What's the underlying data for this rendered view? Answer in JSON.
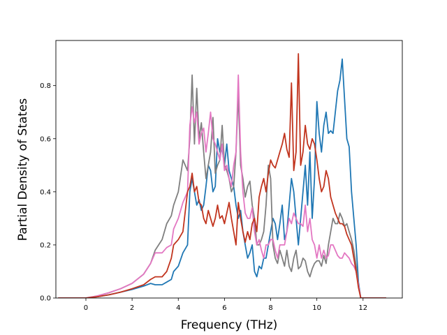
{
  "chart_data": {
    "type": "line",
    "xlabel": "Frequency (THz)",
    "ylabel": "Partial Density of States",
    "xlim": [
      -1.3,
      13.7
    ],
    "ylim": [
      0,
      0.97
    ],
    "xticks": [
      "0",
      "2",
      "4",
      "6",
      "8",
      "10",
      "12"
    ],
    "yticks": [
      "0.0",
      "0.2",
      "0.4",
      "0.6",
      "0.8"
    ],
    "grid": false,
    "legend": "none",
    "series": [
      {
        "color": "#1f77b4",
        "x": [
          -1.2,
          0.0,
          0.5,
          1.0,
          1.5,
          2.0,
          2.5,
          2.8,
          3.0,
          3.3,
          3.5,
          3.7,
          3.8,
          4.0,
          4.2,
          4.4,
          4.5,
          4.6,
          4.7,
          4.8,
          4.9,
          5.0,
          5.1,
          5.2,
          5.3,
          5.4,
          5.5,
          5.6,
          5.7,
          5.8,
          5.9,
          6.0,
          6.1,
          6.2,
          6.3,
          6.4,
          6.5,
          6.6,
          6.7,
          6.8,
          6.9,
          7.0,
          7.1,
          7.2,
          7.3,
          7.4,
          7.5,
          7.6,
          7.7,
          7.8,
          7.9,
          8.0,
          8.1,
          8.2,
          8.3,
          8.4,
          8.5,
          8.6,
          8.7,
          8.8,
          8.9,
          9.0,
          9.1,
          9.2,
          9.3,
          9.4,
          9.5,
          9.6,
          9.7,
          9.8,
          9.9,
          10.0,
          10.1,
          10.2,
          10.3,
          10.4,
          10.5,
          10.6,
          10.7,
          10.8,
          10.9,
          11.0,
          11.1,
          11.2,
          11.3,
          11.4,
          11.5,
          11.6,
          11.7,
          11.8,
          11.9,
          13.0
        ],
        "y": [
          0.0,
          0.0,
          0.005,
          0.012,
          0.022,
          0.032,
          0.045,
          0.055,
          0.05,
          0.05,
          0.06,
          0.07,
          0.1,
          0.12,
          0.17,
          0.2,
          0.4,
          0.45,
          0.4,
          0.35,
          0.37,
          0.33,
          0.35,
          0.42,
          0.5,
          0.48,
          0.4,
          0.42,
          0.6,
          0.55,
          0.56,
          0.5,
          0.58,
          0.48,
          0.45,
          0.42,
          0.35,
          0.3,
          0.33,
          0.25,
          0.2,
          0.15,
          0.17,
          0.2,
          0.1,
          0.08,
          0.12,
          0.11,
          0.15,
          0.15,
          0.2,
          0.25,
          0.3,
          0.28,
          0.22,
          0.28,
          0.35,
          0.22,
          0.25,
          0.35,
          0.45,
          0.4,
          0.3,
          0.2,
          0.3,
          0.4,
          0.5,
          0.35,
          0.55,
          0.3,
          0.45,
          0.74,
          0.62,
          0.55,
          0.65,
          0.7,
          0.62,
          0.63,
          0.62,
          0.7,
          0.78,
          0.82,
          0.9,
          0.75,
          0.6,
          0.57,
          0.4,
          0.3,
          0.2,
          0.06,
          0.0,
          0.0
        ]
      },
      {
        "color": "#7f7f7f",
        "x": [
          -1.2,
          0.0,
          0.5,
          1.0,
          1.5,
          2.0,
          2.5,
          2.8,
          3.0,
          3.3,
          3.5,
          3.7,
          3.8,
          4.0,
          4.2,
          4.4,
          4.5,
          4.6,
          4.7,
          4.8,
          4.9,
          5.0,
          5.1,
          5.2,
          5.3,
          5.4,
          5.5,
          5.6,
          5.7,
          5.8,
          5.9,
          6.0,
          6.1,
          6.2,
          6.3,
          6.4,
          6.5,
          6.6,
          6.7,
          6.8,
          6.9,
          7.0,
          7.1,
          7.2,
          7.3,
          7.4,
          7.5,
          7.6,
          7.7,
          7.8,
          7.9,
          8.0,
          8.1,
          8.2,
          8.3,
          8.4,
          8.5,
          8.6,
          8.7,
          8.8,
          8.9,
          9.0,
          9.1,
          9.2,
          9.3,
          9.4,
          9.5,
          9.6,
          9.7,
          9.8,
          9.9,
          10.0,
          10.1,
          10.2,
          10.3,
          10.4,
          10.5,
          10.6,
          10.7,
          10.8,
          10.9,
          11.0,
          11.1,
          11.2,
          11.3,
          11.4,
          11.5,
          11.6,
          11.7,
          11.8,
          11.9,
          13.0
        ],
        "y": [
          0.0,
          0.0,
          0.008,
          0.02,
          0.035,
          0.055,
          0.09,
          0.13,
          0.18,
          0.22,
          0.28,
          0.31,
          0.35,
          0.4,
          0.52,
          0.48,
          0.6,
          0.84,
          0.58,
          0.79,
          0.6,
          0.66,
          0.55,
          0.45,
          0.5,
          0.55,
          0.68,
          0.47,
          0.5,
          0.52,
          0.65,
          0.5,
          0.48,
          0.45,
          0.4,
          0.42,
          0.55,
          0.77,
          0.5,
          0.45,
          0.38,
          0.42,
          0.44,
          0.35,
          0.3,
          0.2,
          0.2,
          0.22,
          0.25,
          0.35,
          0.5,
          0.45,
          0.2,
          0.15,
          0.13,
          0.18,
          0.15,
          0.12,
          0.18,
          0.12,
          0.1,
          0.15,
          0.18,
          0.11,
          0.12,
          0.15,
          0.14,
          0.1,
          0.08,
          0.11,
          0.13,
          0.14,
          0.14,
          0.12,
          0.16,
          0.13,
          0.2,
          0.25,
          0.3,
          0.28,
          0.28,
          0.32,
          0.3,
          0.27,
          0.28,
          0.25,
          0.22,
          0.18,
          0.12,
          0.05,
          0.0,
          0.0
        ]
      },
      {
        "color": "#e377c2",
        "x": [
          -1.2,
          0.0,
          0.5,
          1.0,
          1.5,
          2.0,
          2.5,
          2.8,
          3.0,
          3.3,
          3.5,
          3.7,
          3.8,
          4.0,
          4.2,
          4.4,
          4.5,
          4.6,
          4.7,
          4.8,
          4.9,
          5.0,
          5.1,
          5.2,
          5.3,
          5.4,
          5.5,
          5.6,
          5.7,
          5.8,
          5.9,
          6.0,
          6.1,
          6.2,
          6.3,
          6.4,
          6.5,
          6.6,
          6.7,
          6.8,
          6.9,
          7.0,
          7.1,
          7.2,
          7.3,
          7.4,
          7.5,
          7.6,
          7.7,
          7.8,
          7.9,
          8.0,
          8.1,
          8.2,
          8.3,
          8.4,
          8.5,
          8.6,
          8.7,
          8.8,
          8.9,
          9.0,
          9.1,
          9.2,
          9.3,
          9.4,
          9.5,
          9.6,
          9.7,
          9.8,
          9.9,
          10.0,
          10.1,
          10.2,
          10.3,
          10.4,
          10.5,
          10.6,
          10.7,
          10.8,
          10.9,
          11.0,
          11.1,
          11.2,
          11.3,
          11.4,
          11.5,
          11.6,
          11.7,
          11.8,
          11.9,
          13.0
        ],
        "y": [
          0.0,
          0.0,
          0.008,
          0.02,
          0.035,
          0.055,
          0.09,
          0.13,
          0.17,
          0.17,
          0.19,
          0.2,
          0.26,
          0.3,
          0.36,
          0.4,
          0.65,
          0.72,
          0.66,
          0.7,
          0.58,
          0.62,
          0.64,
          0.55,
          0.62,
          0.7,
          0.6,
          0.58,
          0.55,
          0.52,
          0.58,
          0.48,
          0.5,
          0.45,
          0.42,
          0.5,
          0.55,
          0.84,
          0.55,
          0.4,
          0.32,
          0.3,
          0.3,
          0.34,
          0.25,
          0.2,
          0.22,
          0.18,
          0.15,
          0.2,
          0.2,
          0.22,
          0.22,
          0.18,
          0.15,
          0.2,
          0.2,
          0.2,
          0.25,
          0.3,
          0.28,
          0.32,
          0.3,
          0.28,
          0.28,
          0.27,
          0.35,
          0.25,
          0.3,
          0.22,
          0.2,
          0.15,
          0.2,
          0.15,
          0.18,
          0.15,
          0.16,
          0.2,
          0.2,
          0.18,
          0.16,
          0.15,
          0.15,
          0.17,
          0.16,
          0.15,
          0.13,
          0.12,
          0.1,
          0.05,
          0.0,
          0.0
        ]
      },
      {
        "color": "#c1341e",
        "x": [
          -1.2,
          0.0,
          0.5,
          1.0,
          1.5,
          2.0,
          2.5,
          2.8,
          3.0,
          3.3,
          3.5,
          3.7,
          3.8,
          4.0,
          4.2,
          4.4,
          4.5,
          4.6,
          4.7,
          4.8,
          4.9,
          5.0,
          5.1,
          5.2,
          5.3,
          5.4,
          5.5,
          5.6,
          5.7,
          5.8,
          5.9,
          6.0,
          6.1,
          6.2,
          6.3,
          6.4,
          6.5,
          6.6,
          6.7,
          6.8,
          6.9,
          7.0,
          7.1,
          7.2,
          7.3,
          7.4,
          7.5,
          7.6,
          7.7,
          7.8,
          7.9,
          8.0,
          8.1,
          8.2,
          8.3,
          8.4,
          8.5,
          8.6,
          8.7,
          8.8,
          8.9,
          9.0,
          9.1,
          9.2,
          9.3,
          9.4,
          9.5,
          9.6,
          9.7,
          9.8,
          9.9,
          10.0,
          10.1,
          10.2,
          10.3,
          10.4,
          10.5,
          10.6,
          10.7,
          10.8,
          10.9,
          11.0,
          11.1,
          11.2,
          11.3,
          11.4,
          11.5,
          11.6,
          11.7,
          11.8,
          11.9,
          13.0
        ],
        "y": [
          0.0,
          0.0,
          0.005,
          0.012,
          0.022,
          0.035,
          0.05,
          0.07,
          0.08,
          0.08,
          0.1,
          0.15,
          0.2,
          0.22,
          0.25,
          0.4,
          0.42,
          0.47,
          0.4,
          0.42,
          0.36,
          0.35,
          0.3,
          0.28,
          0.33,
          0.3,
          0.27,
          0.3,
          0.35,
          0.3,
          0.31,
          0.28,
          0.32,
          0.36,
          0.3,
          0.25,
          0.2,
          0.36,
          0.3,
          0.25,
          0.21,
          0.25,
          0.22,
          0.28,
          0.3,
          0.25,
          0.38,
          0.42,
          0.45,
          0.4,
          0.47,
          0.52,
          0.5,
          0.49,
          0.52,
          0.55,
          0.58,
          0.62,
          0.56,
          0.53,
          0.81,
          0.48,
          0.55,
          0.92,
          0.5,
          0.55,
          0.65,
          0.58,
          0.56,
          0.6,
          0.58,
          0.52,
          0.45,
          0.4,
          0.42,
          0.48,
          0.45,
          0.38,
          0.35,
          0.32,
          0.3,
          0.28,
          0.28,
          0.27,
          0.24,
          0.22,
          0.2,
          0.15,
          0.1,
          0.04,
          0.0,
          0.0
        ]
      }
    ]
  }
}
